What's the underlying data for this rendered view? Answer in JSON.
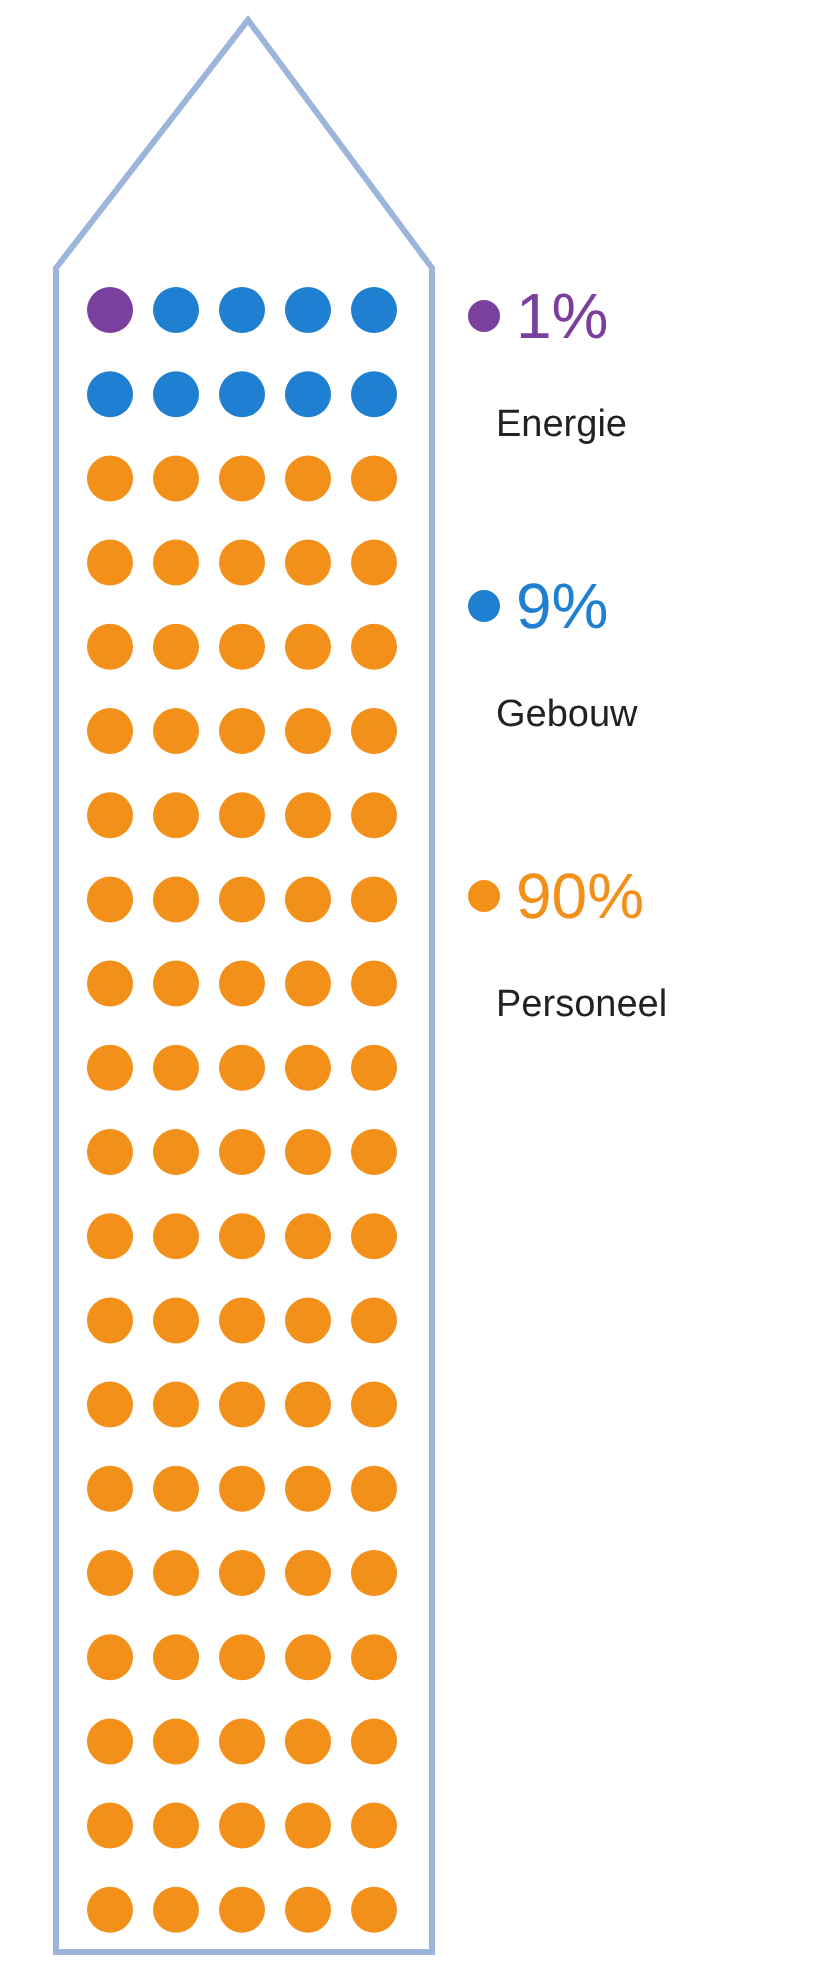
{
  "chart_data": {
    "type": "other",
    "categories": [
      "Energie",
      "Gebouw",
      "Personeel"
    ],
    "values": [
      1,
      9,
      90
    ],
    "value_labels": [
      "1%",
      "9%",
      "90%"
    ],
    "colors": [
      "#7b3f9e",
      "#1f7fd1",
      "#f39019"
    ]
  }
}
